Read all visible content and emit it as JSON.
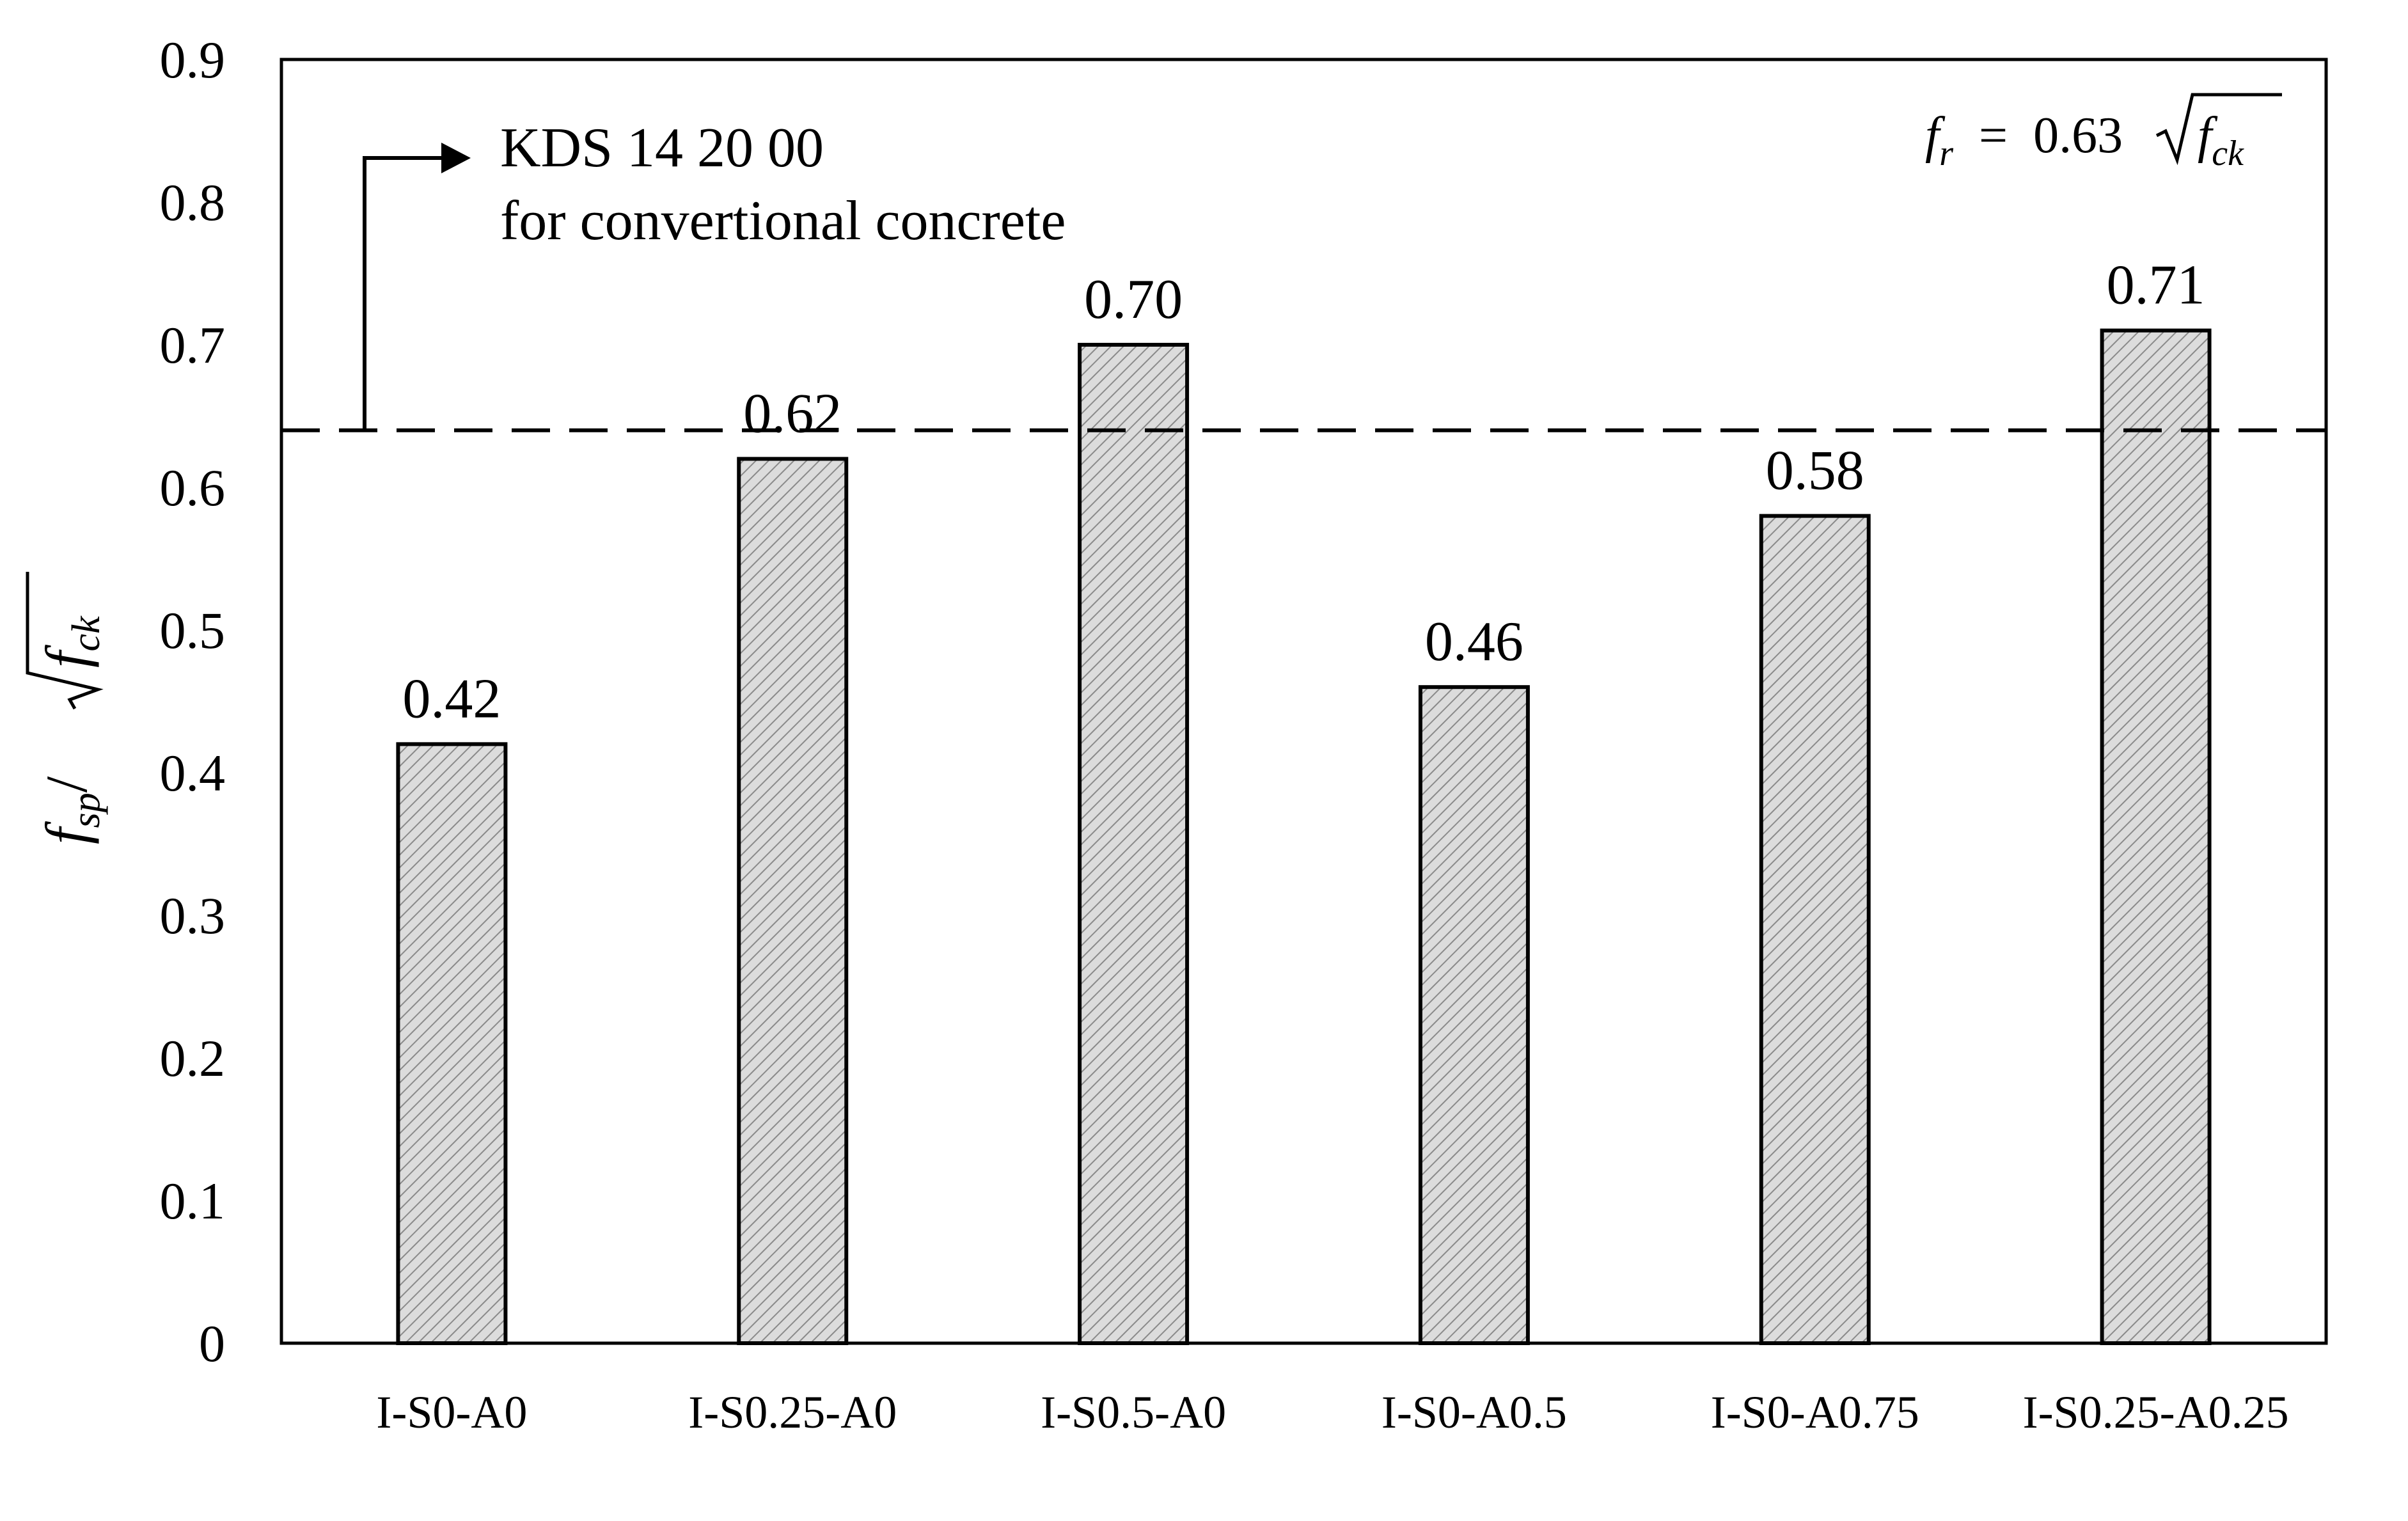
{
  "chart_data": {
    "type": "bar",
    "categories": [
      "I-S0-A0",
      "I-S0.25-A0",
      "I-S0.5-A0",
      "I-S0-A0.5",
      "I-S0-A0.75",
      "I-S0.25-A0.25"
    ],
    "values": [
      0.42,
      0.62,
      0.7,
      0.46,
      0.58,
      0.71
    ],
    "data_labels": [
      "0.42",
      "0.62",
      "0.70",
      "0.46",
      "0.58",
      "0.71"
    ],
    "ylim": [
      0,
      0.9
    ],
    "yticks": [
      "0",
      "0.1",
      "0.2",
      "0.3",
      "0.4",
      "0.5",
      "0.6",
      "0.7",
      "0.8",
      "0.9"
    ],
    "ylabel": {
      "f": "f",
      "sub": "sp",
      "slash": "/",
      "radicand": "f",
      "radicand_sub": "ck"
    },
    "reference_line": {
      "value": 0.64,
      "label_line1": "KDS 14 20 00",
      "label_line2": "for convertional concrete"
    },
    "formula": {
      "lhs": "f",
      "lhs_sub": "r",
      "equals": "=",
      "coef": "0.63",
      "radicand": "f",
      "radicand_sub": "ck"
    },
    "bar_fill": "#d9d9d9",
    "bar_stroke": "#000000",
    "grid": false,
    "legend": "none"
  }
}
